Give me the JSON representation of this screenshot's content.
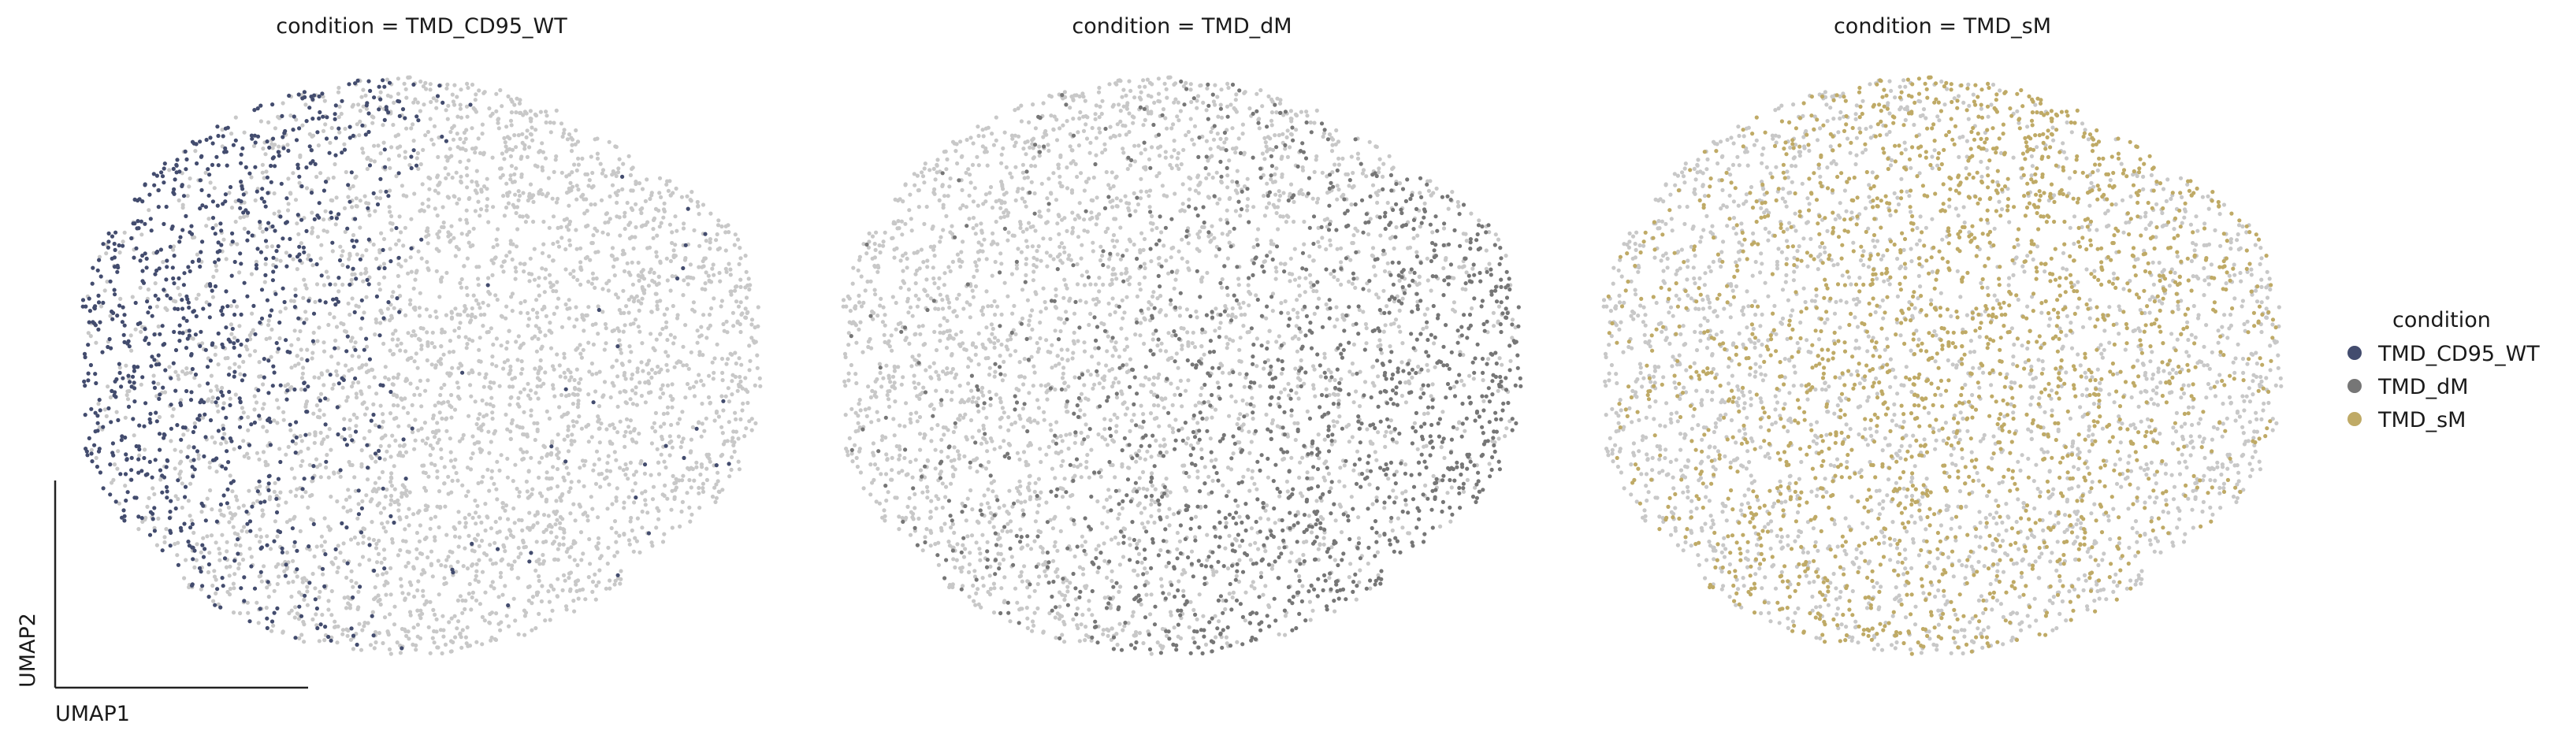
{
  "chart_data": {
    "type": "scatter",
    "facet_variable": "condition",
    "panels": [
      {
        "title": "condition = TMD_CD95_WT",
        "highlight": "TMD_CD95_WT"
      },
      {
        "title": "condition = TMD_dM",
        "highlight": "TMD_dM"
      },
      {
        "title": "condition = TMD_sM",
        "highlight": "TMD_sM"
      }
    ],
    "axis_labels": {
      "x": "UMAP1",
      "y": "UMAP2"
    },
    "ticks_shown": false,
    "grid": false,
    "background_color": "#c8c8c8",
    "legend": {
      "title": "condition",
      "placement": "right",
      "entries": [
        {
          "label": "TMD_CD95_WT",
          "color": "#434c6e"
        },
        {
          "label": "TMD_dM",
          "color": "#767676"
        },
        {
          "label": "TMD_sM",
          "color": "#bfaa66"
        }
      ]
    },
    "series": [
      {
        "name": "TMD_CD95_WT",
        "color": "#434c6e",
        "approx_points": 1400,
        "region": "left / upper-left part of the embedding",
        "x_range": [
          0.0,
          0.55
        ],
        "y_range": [
          0.08,
          1.0
        ]
      },
      {
        "name": "TMD_dM",
        "color": "#767676",
        "approx_points": 1500,
        "region": "lower and right part of the embedding",
        "x_range": [
          0.3,
          1.0
        ],
        "y_range": [
          0.0,
          0.72
        ]
      },
      {
        "name": "TMD_sM",
        "color": "#bfaa66",
        "approx_points": 1600,
        "region": "central band spanning lower-left to upper-right",
        "x_range": [
          0.15,
          0.85
        ],
        "y_range": [
          0.05,
          0.93
        ]
      }
    ]
  }
}
